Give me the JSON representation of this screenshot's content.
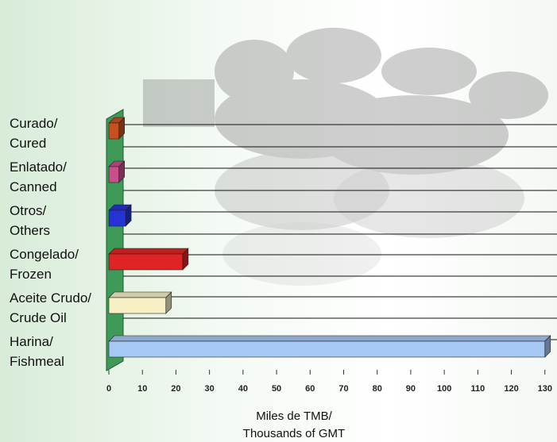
{
  "chart_data": {
    "type": "bar3d",
    "categories": [
      "Curado/\nCured",
      "Enlatado/\nCanned",
      "Otros/\nOthers",
      "Congelado/\nFrozen",
      "Aceite Crudo/\nCrude Oil",
      "Harina/\nFishmeal"
    ],
    "values": [
      3,
      3,
      5,
      22,
      17,
      130
    ],
    "colors": [
      "#c8501e",
      "#c8508c",
      "#2333d6",
      "#e02424",
      "#f6f0c4",
      "#a6c8f2"
    ],
    "xlim": [
      0,
      131
    ],
    "xticks": [
      0,
      10,
      20,
      30,
      40,
      50,
      60,
      70,
      80,
      90,
      100,
      110,
      120,
      130
    ],
    "x_label": "Miles de TMB/\nThousands of GMT"
  }
}
